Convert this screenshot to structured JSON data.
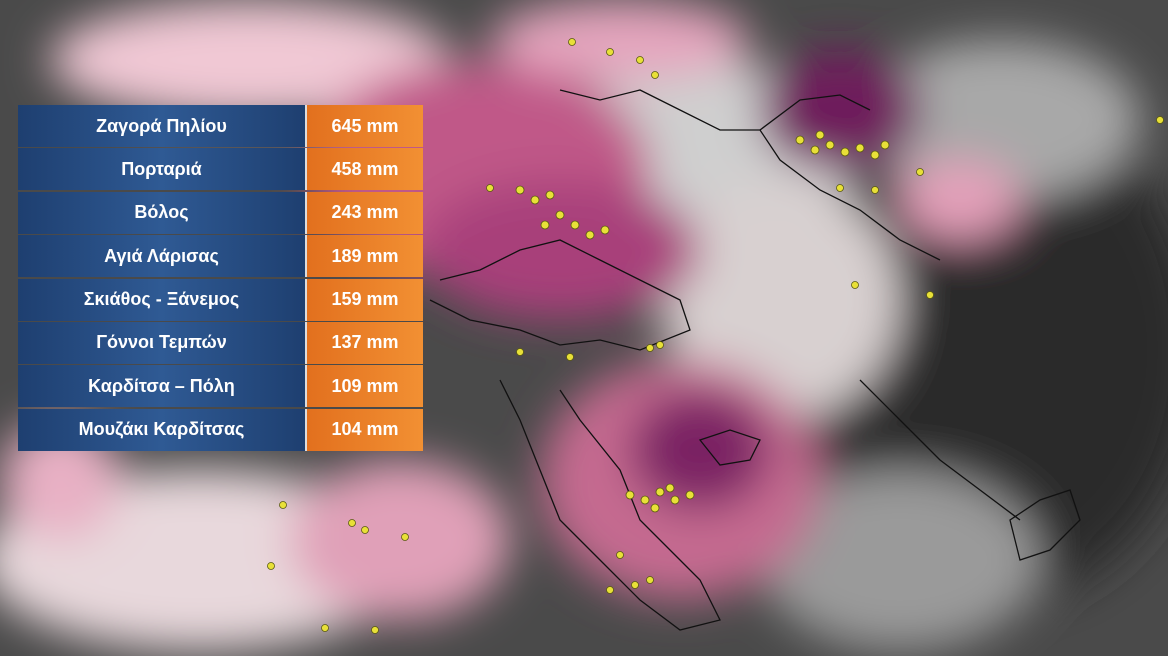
{
  "table": {
    "rows": [
      [
        "Ζαγορά Πηλίου",
        "645 mm"
      ],
      [
        "Πορταριά",
        "458 mm"
      ],
      [
        "Βόλος",
        "243 mm"
      ],
      [
        "Αγιά Λάρισας",
        "189 mm"
      ],
      [
        "Σκιάθος - Ξάνεμος",
        "159 mm"
      ],
      [
        "Γόννοι Τεμπών",
        "137 mm"
      ],
      [
        "Καρδίτσα – Πόλη",
        "109 mm"
      ],
      [
        "Μουζάκι Καρδίτσας",
        "104 mm"
      ]
    ]
  }
}
